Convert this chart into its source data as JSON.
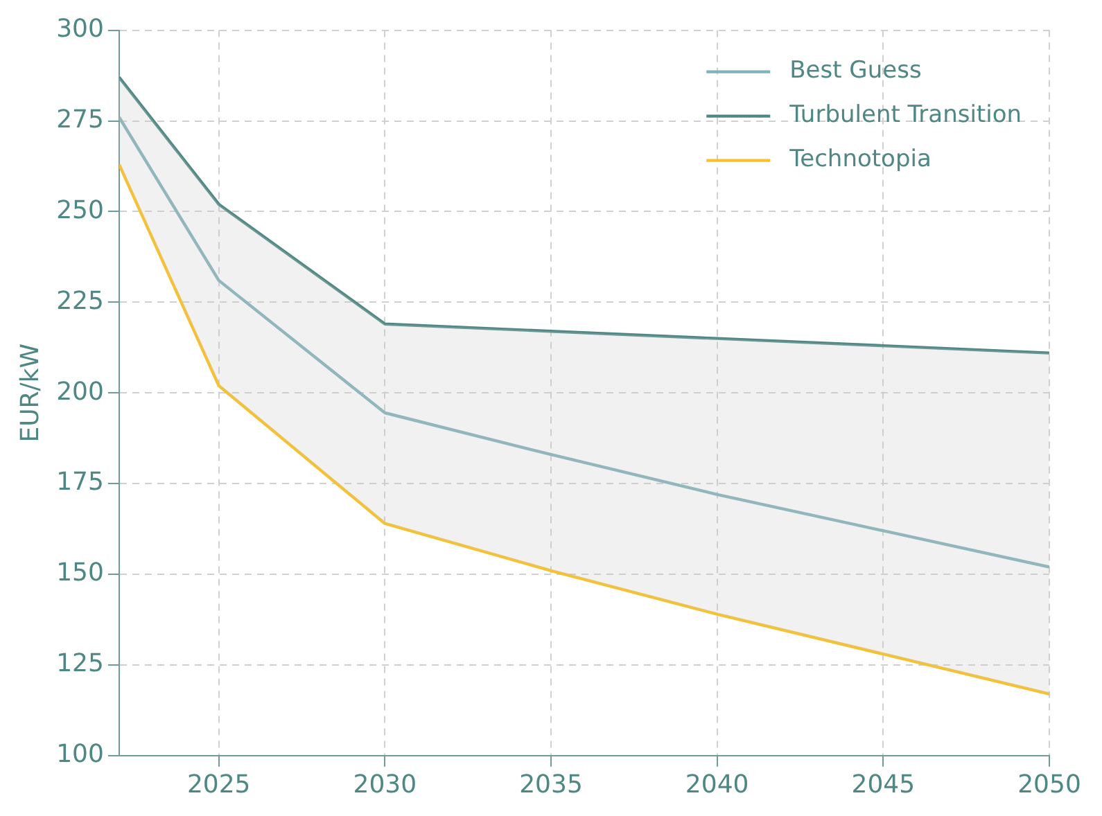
{
  "chart_data": {
    "type": "line",
    "ylabel": "EUR/kW",
    "x": [
      2022,
      2025,
      2030,
      2035,
      2040,
      2045,
      2050
    ],
    "series": [
      {
        "name": "Best Guess",
        "color": "#7fb2ba",
        "values": [
          276,
          231,
          194.5,
          183,
          172,
          162,
          152
        ],
        "lower": [
          263,
          202,
          164,
          151,
          139,
          128,
          117
        ],
        "upper": [
          287,
          252,
          219,
          217,
          215,
          213,
          211
        ]
      },
      {
        "name": "Turbulent Transition",
        "color": "#4e8783",
        "values": [
          287,
          252,
          219,
          217,
          215,
          213,
          211
        ]
      },
      {
        "name": "Technotopia",
        "color": "#f8c12c",
        "values": [
          263,
          202,
          164,
          151,
          139,
          128,
          117
        ]
      }
    ],
    "xlim": [
      2022,
      2050
    ],
    "xticks": [
      2025,
      2030,
      2035,
      2040,
      2045,
      2050
    ],
    "ylim": [
      100,
      300
    ],
    "yticks": [
      100,
      125,
      150,
      175,
      200,
      225,
      250,
      275,
      300
    ],
    "grid": true,
    "legend": "top right",
    "marker": "none",
    "line_style": "solid"
  }
}
